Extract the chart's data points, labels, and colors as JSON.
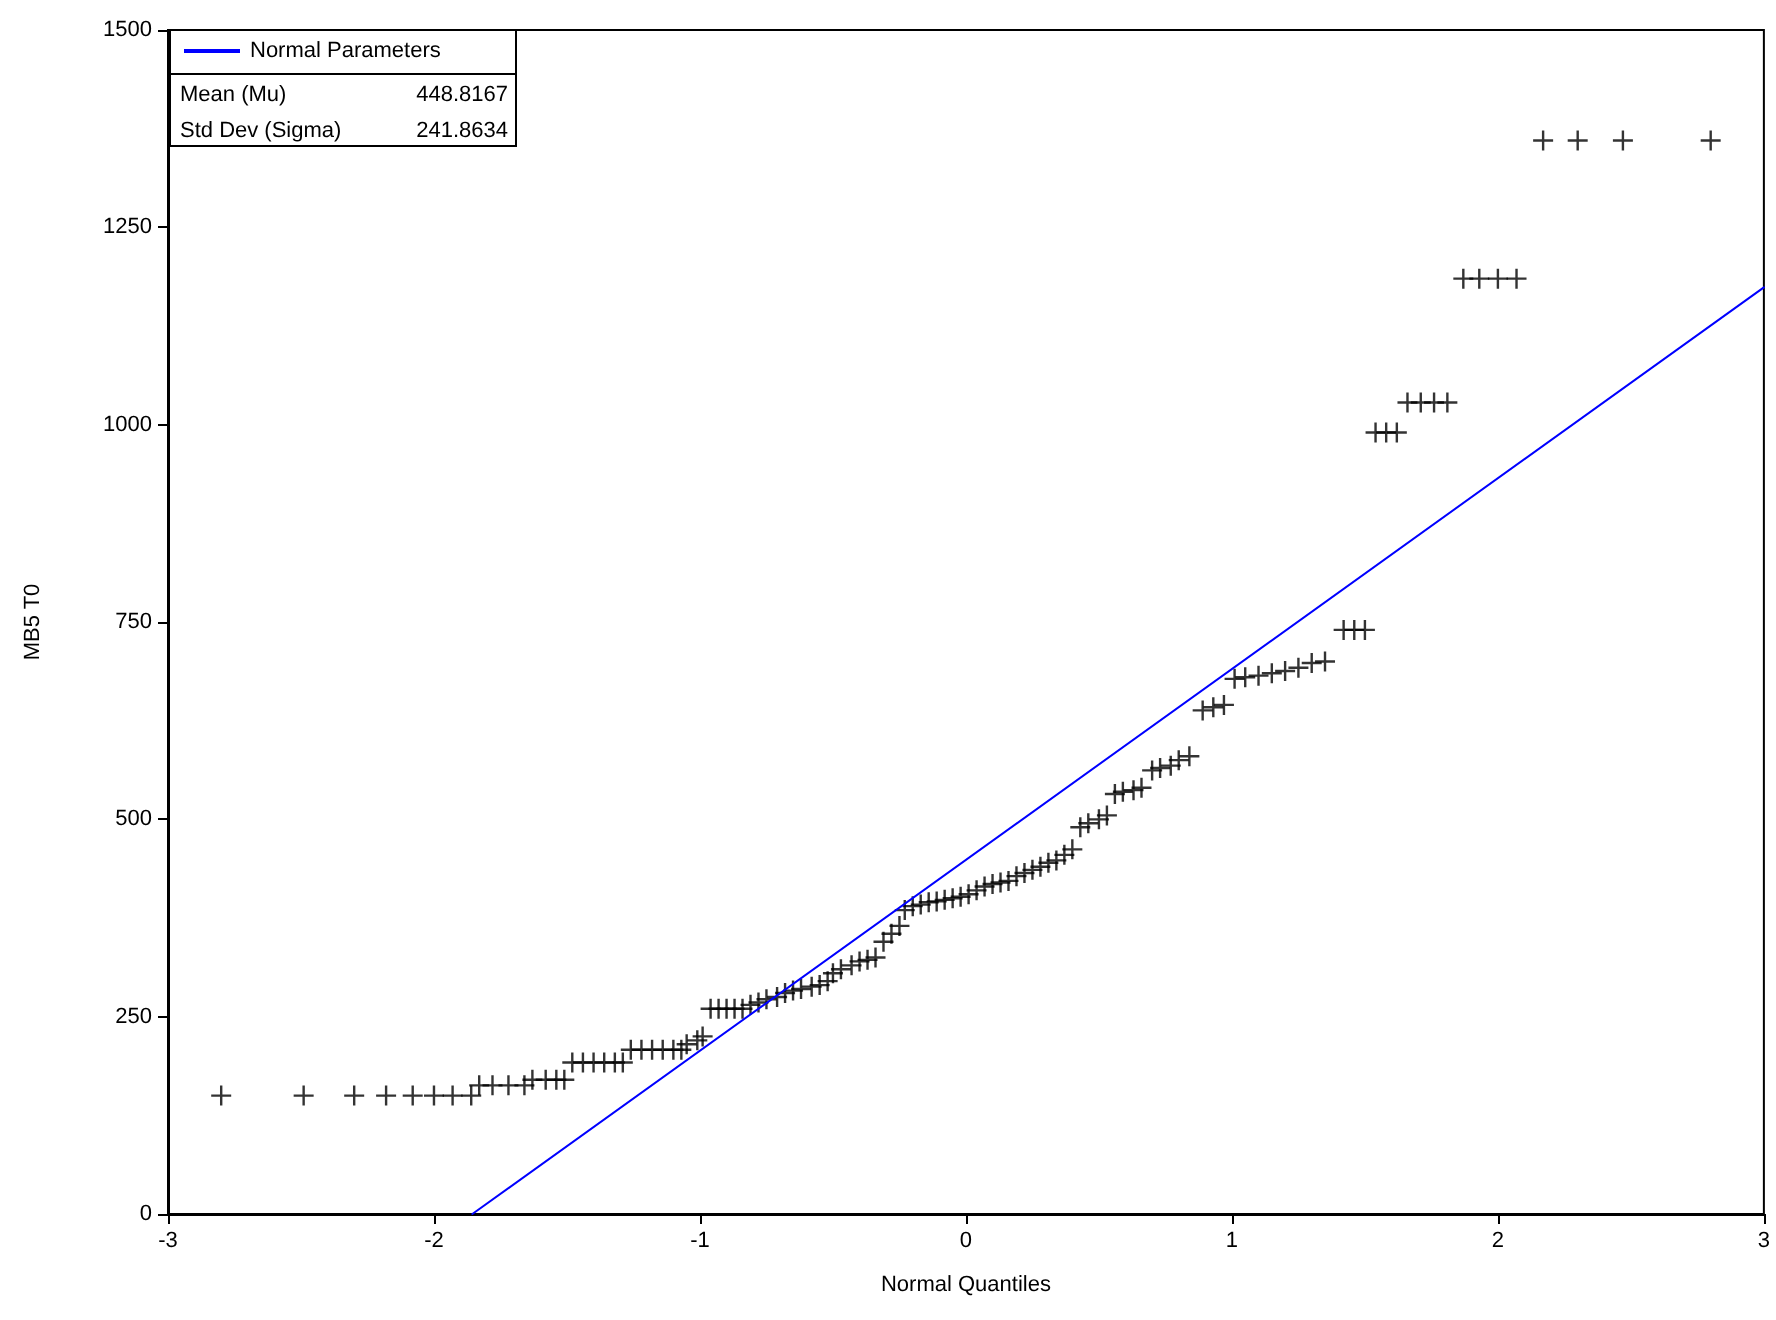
{
  "chart_data": {
    "type": "scatter",
    "xlabel": "Normal Quantiles",
    "ylabel": "MB5 T0",
    "xlim": [
      -3,
      3
    ],
    "xticks": [
      -3,
      -2,
      -1,
      0,
      1,
      2,
      3
    ],
    "ylim": [
      0,
      1500
    ],
    "yticks": [
      0,
      250,
      500,
      750,
      1000,
      1250,
      1500
    ],
    "grid": false,
    "legend": "top left",
    "annotations": [
      "Mean (Mu)",
      "448.8167",
      "Std Dev (Sigma)",
      "241.8634"
    ],
    "series": [
      {
        "color": "#000000",
        "marker": "cross",
        "x": [
          -2.8,
          -2.49,
          -2.3,
          -2.18,
          -2.08,
          -2.0,
          -1.93,
          -1.86,
          -1.83,
          -1.78,
          -1.72,
          -1.66,
          -1.63,
          -1.58,
          -1.54,
          -1.51,
          -1.48,
          -1.44,
          -1.4,
          -1.36,
          -1.32,
          -1.29,
          -1.26,
          -1.22,
          -1.18,
          -1.14,
          -1.1,
          -1.07,
          -1.05,
          -1.01,
          -0.99,
          -0.96,
          -0.93,
          -0.9,
          -0.87,
          -0.84,
          -0.81,
          -0.78,
          -0.75,
          -0.71,
          -0.68,
          -0.65,
          -0.62,
          -0.58,
          -0.55,
          -0.52,
          -0.5,
          -0.47,
          -0.43,
          -0.4,
          -0.37,
          -0.34,
          -0.31,
          -0.28,
          -0.25,
          -0.23,
          -0.2,
          -0.17,
          -0.14,
          -0.11,
          -0.08,
          -0.05,
          -0.02,
          0.01,
          0.04,
          0.07,
          0.1,
          0.13,
          0.16,
          0.19,
          0.22,
          0.25,
          0.28,
          0.31,
          0.34,
          0.37,
          0.4,
          0.43,
          0.46,
          0.5,
          0.53,
          0.56,
          0.59,
          0.63,
          0.66,
          0.7,
          0.73,
          0.77,
          0.8,
          0.84,
          0.89,
          0.93,
          0.97,
          1.01,
          1.05,
          1.1,
          1.15,
          1.2,
          1.25,
          1.3,
          1.35,
          1.42,
          1.46,
          1.5,
          1.54,
          1.58,
          1.62,
          1.66,
          1.71,
          1.76,
          1.81,
          1.87,
          1.93,
          2.0,
          2.07,
          2.17,
          2.3,
          2.47,
          2.8
        ],
        "values": [
          150,
          150,
          150,
          150,
          150,
          150,
          150,
          150,
          163,
          163,
          163,
          163,
          170,
          170,
          170,
          170,
          192,
          192,
          192,
          192,
          192,
          192,
          208,
          208,
          208,
          208,
          208,
          208,
          215,
          220,
          225,
          260,
          260,
          260,
          260,
          260,
          265,
          268,
          272,
          275,
          280,
          283,
          285,
          288,
          290,
          295,
          305,
          310,
          315,
          320,
          322,
          325,
          345,
          355,
          365,
          385,
          390,
          392,
          395,
          396,
          398,
          400,
          402,
          405,
          410,
          415,
          418,
          420,
          422,
          428,
          432,
          436,
          440,
          445,
          448,
          455,
          462,
          490,
          495,
          500,
          505,
          532,
          535,
          537,
          540,
          562,
          565,
          568,
          575,
          580,
          638,
          642,
          645,
          678,
          680,
          682,
          685,
          688,
          692,
          698,
          700,
          740,
          740,
          740,
          990,
          990,
          990,
          1028,
          1028,
          1028,
          1028,
          1185,
          1185,
          1185,
          1185,
          1360,
          1360,
          1360,
          1360
        ]
      },
      {
        "type": "line",
        "name": "Normal Parameters",
        "color": "#0000ff",
        "marker": "none",
        "x": [
          -1.8557,
          3
        ],
        "values": [
          0,
          1174
        ]
      }
    ]
  }
}
